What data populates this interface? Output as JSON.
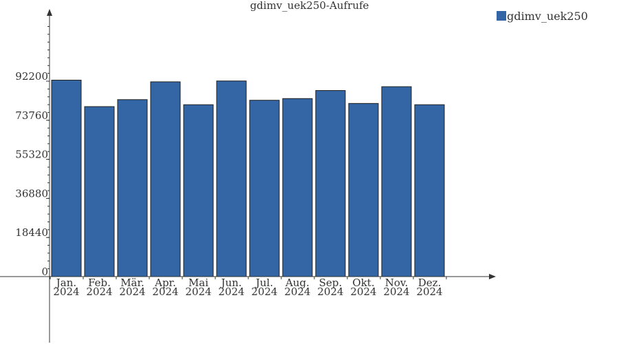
{
  "chart_data": {
    "type": "bar",
    "title": "gdimv_uek250-Aufrufe",
    "xlabel": "",
    "ylabel": "",
    "categories": [
      [
        "Jan.",
        "2024"
      ],
      [
        "Feb.",
        "2024"
      ],
      [
        "Mär.",
        "2024"
      ],
      [
        "Apr.",
        "2024"
      ],
      [
        "Mai",
        "2024"
      ],
      [
        "Jun.",
        "2024"
      ],
      [
        "Jul.",
        "2024"
      ],
      [
        "Aug.",
        "2024"
      ],
      [
        "Sep.",
        "2024"
      ],
      [
        "Okt.",
        "2024"
      ],
      [
        "Nov.",
        "2024"
      ],
      [
        "Dez.",
        "2024"
      ]
    ],
    "series": [
      {
        "name": "gdimv_uek250",
        "color": "#3465a4",
        "values": [
          92700,
          80200,
          83500,
          91900,
          81100,
          92300,
          83200,
          84000,
          87800,
          81700,
          89600,
          81100
        ]
      }
    ],
    "yticks": [
      0,
      18440,
      36880,
      55320,
      73760,
      92200
    ],
    "ylim": [
      0,
      92200
    ],
    "grid": false,
    "legend_position": "top-right"
  }
}
